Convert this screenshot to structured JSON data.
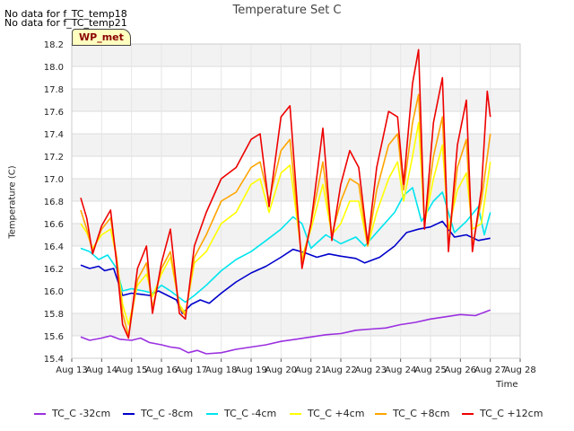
{
  "page": {
    "nodata_messages": [
      "No data for f_TC_temp18",
      "No data for f_TC_temp21"
    ],
    "badge_text": "WP_met"
  },
  "chart_data": {
    "type": "line",
    "title": "Temperature Set C",
    "xlabel": "Time",
    "ylabel": "Temperature (C)",
    "x_ticks": [
      "Aug 13",
      "Aug 14",
      "Aug 15",
      "Aug 16",
      "Aug 17",
      "Aug 18",
      "Aug 19",
      "Aug 20",
      "Aug 21",
      "Aug 22",
      "Aug 23",
      "Aug 24",
      "Aug 25",
      "Aug 26",
      "Aug 27",
      "Aug 28"
    ],
    "y_ticks": [
      "15.4",
      "15.6",
      "15.8",
      "16.0",
      "16.2",
      "16.4",
      "16.6",
      "16.8",
      "17.0",
      "17.2",
      "17.4",
      "17.6",
      "17.8",
      "18.0",
      "18.2"
    ],
    "xlim": [
      13,
      28
    ],
    "ylim": [
      15.4,
      18.2
    ],
    "x_unit": "day of August",
    "grid": true,
    "legend_position": "bottom",
    "series": [
      {
        "name": "TC_C -32cm",
        "color": "#9b30e0",
        "points": [
          [
            13.3,
            15.59
          ],
          [
            13.6,
            15.56
          ],
          [
            14.0,
            15.58
          ],
          [
            14.3,
            15.6
          ],
          [
            14.6,
            15.57
          ],
          [
            15.0,
            15.56
          ],
          [
            15.3,
            15.58
          ],
          [
            15.6,
            15.54
          ],
          [
            16.0,
            15.52
          ],
          [
            16.3,
            15.5
          ],
          [
            16.6,
            15.49
          ],
          [
            16.9,
            15.45
          ],
          [
            17.2,
            15.47
          ],
          [
            17.5,
            15.44
          ],
          [
            18.0,
            15.45
          ],
          [
            18.5,
            15.48
          ],
          [
            19.0,
            15.5
          ],
          [
            19.5,
            15.52
          ],
          [
            20.0,
            15.55
          ],
          [
            20.5,
            15.57
          ],
          [
            21.0,
            15.59
          ],
          [
            21.5,
            15.61
          ],
          [
            22.0,
            15.62
          ],
          [
            22.5,
            15.65
          ],
          [
            23.0,
            15.66
          ],
          [
            23.5,
            15.67
          ],
          [
            24.0,
            15.7
          ],
          [
            24.5,
            15.72
          ],
          [
            25.0,
            15.75
          ],
          [
            25.5,
            15.77
          ],
          [
            26.0,
            15.79
          ],
          [
            26.5,
            15.78
          ],
          [
            27.0,
            15.83
          ]
        ]
      },
      {
        "name": "TC_C -8cm",
        "color": "#0000cc",
        "points": [
          [
            13.3,
            16.23
          ],
          [
            13.6,
            16.2
          ],
          [
            13.9,
            16.22
          ],
          [
            14.1,
            16.18
          ],
          [
            14.4,
            16.2
          ],
          [
            14.7,
            15.96
          ],
          [
            15.0,
            15.98
          ],
          [
            15.3,
            15.97
          ],
          [
            15.6,
            15.96
          ],
          [
            15.9,
            16.0
          ],
          [
            16.2,
            15.96
          ],
          [
            16.5,
            15.92
          ],
          [
            16.7,
            15.8
          ],
          [
            17.0,
            15.88
          ],
          [
            17.3,
            15.92
          ],
          [
            17.6,
            15.89
          ],
          [
            18.0,
            15.98
          ],
          [
            18.5,
            16.08
          ],
          [
            19.0,
            16.16
          ],
          [
            19.5,
            16.22
          ],
          [
            20.0,
            16.3
          ],
          [
            20.4,
            16.37
          ],
          [
            20.8,
            16.34
          ],
          [
            21.2,
            16.3
          ],
          [
            21.6,
            16.33
          ],
          [
            22.0,
            16.31
          ],
          [
            22.5,
            16.29
          ],
          [
            22.8,
            16.25
          ],
          [
            23.3,
            16.3
          ],
          [
            23.8,
            16.4
          ],
          [
            24.2,
            16.52
          ],
          [
            24.6,
            16.55
          ],
          [
            25.0,
            16.57
          ],
          [
            25.4,
            16.62
          ],
          [
            25.8,
            16.48
          ],
          [
            26.2,
            16.5
          ],
          [
            26.6,
            16.45
          ],
          [
            27.0,
            16.47
          ]
        ]
      },
      {
        "name": "TC_C -4cm",
        "color": "#00e5ee",
        "points": [
          [
            13.3,
            16.38
          ],
          [
            13.6,
            16.35
          ],
          [
            13.9,
            16.28
          ],
          [
            14.2,
            16.32
          ],
          [
            14.5,
            16.2
          ],
          [
            14.7,
            16.0
          ],
          [
            15.0,
            16.02
          ],
          [
            15.4,
            16.0
          ],
          [
            15.7,
            15.98
          ],
          [
            16.0,
            16.05
          ],
          [
            16.3,
            16.0
          ],
          [
            16.6,
            15.94
          ],
          [
            16.8,
            15.9
          ],
          [
            17.1,
            15.96
          ],
          [
            17.5,
            16.05
          ],
          [
            18.0,
            16.18
          ],
          [
            18.5,
            16.28
          ],
          [
            19.0,
            16.35
          ],
          [
            19.5,
            16.45
          ],
          [
            20.0,
            16.55
          ],
          [
            20.4,
            16.66
          ],
          [
            20.7,
            16.6
          ],
          [
            21.0,
            16.38
          ],
          [
            21.5,
            16.5
          ],
          [
            22.0,
            16.42
          ],
          [
            22.5,
            16.48
          ],
          [
            22.8,
            16.4
          ],
          [
            23.3,
            16.55
          ],
          [
            23.8,
            16.7
          ],
          [
            24.1,
            16.85
          ],
          [
            24.4,
            16.92
          ],
          [
            24.7,
            16.62
          ],
          [
            25.1,
            16.8
          ],
          [
            25.4,
            16.88
          ],
          [
            25.8,
            16.52
          ],
          [
            26.2,
            16.62
          ],
          [
            26.6,
            16.75
          ],
          [
            26.8,
            16.5
          ],
          [
            27.0,
            16.7
          ]
        ]
      },
      {
        "name": "TC_C +4cm",
        "color": "#ffff00",
        "points": [
          [
            13.3,
            16.6
          ],
          [
            13.5,
            16.52
          ],
          [
            13.7,
            16.38
          ],
          [
            14.0,
            16.5
          ],
          [
            14.3,
            16.55
          ],
          [
            14.5,
            16.3
          ],
          [
            14.7,
            15.88
          ],
          [
            14.9,
            15.7
          ],
          [
            15.2,
            16.05
          ],
          [
            15.5,
            16.15
          ],
          [
            15.7,
            15.95
          ],
          [
            16.0,
            16.15
          ],
          [
            16.3,
            16.3
          ],
          [
            16.6,
            15.88
          ],
          [
            16.8,
            15.8
          ],
          [
            17.1,
            16.25
          ],
          [
            17.5,
            16.35
          ],
          [
            18.0,
            16.6
          ],
          [
            18.5,
            16.7
          ],
          [
            19.0,
            16.95
          ],
          [
            19.3,
            17.0
          ],
          [
            19.6,
            16.7
          ],
          [
            20.0,
            17.05
          ],
          [
            20.3,
            17.12
          ],
          [
            20.7,
            16.3
          ],
          [
            21.0,
            16.55
          ],
          [
            21.4,
            16.95
          ],
          [
            21.7,
            16.5
          ],
          [
            22.0,
            16.6
          ],
          [
            22.3,
            16.8
          ],
          [
            22.6,
            16.8
          ],
          [
            22.9,
            16.4
          ],
          [
            23.2,
            16.7
          ],
          [
            23.6,
            17.0
          ],
          [
            23.9,
            17.15
          ],
          [
            24.1,
            16.8
          ],
          [
            24.4,
            17.2
          ],
          [
            24.6,
            17.5
          ],
          [
            24.8,
            16.6
          ],
          [
            25.1,
            17.0
          ],
          [
            25.4,
            17.3
          ],
          [
            25.6,
            16.55
          ],
          [
            25.9,
            16.9
          ],
          [
            26.2,
            17.05
          ],
          [
            26.4,
            16.55
          ],
          [
            26.7,
            16.6
          ],
          [
            27.0,
            17.15
          ]
        ]
      },
      {
        "name": "TC_C +8cm",
        "color": "#ffa500",
        "points": [
          [
            13.3,
            16.72
          ],
          [
            13.5,
            16.55
          ],
          [
            13.7,
            16.35
          ],
          [
            14.0,
            16.55
          ],
          [
            14.3,
            16.65
          ],
          [
            14.5,
            16.3
          ],
          [
            14.7,
            15.8
          ],
          [
            14.9,
            15.6
          ],
          [
            15.2,
            16.1
          ],
          [
            15.5,
            16.25
          ],
          [
            15.7,
            15.85
          ],
          [
            16.0,
            16.2
          ],
          [
            16.3,
            16.35
          ],
          [
            16.6,
            15.85
          ],
          [
            16.8,
            15.78
          ],
          [
            17.1,
            16.3
          ],
          [
            17.5,
            16.5
          ],
          [
            18.0,
            16.8
          ],
          [
            18.5,
            16.88
          ],
          [
            19.0,
            17.1
          ],
          [
            19.3,
            17.15
          ],
          [
            19.6,
            16.8
          ],
          [
            20.0,
            17.25
          ],
          [
            20.3,
            17.35
          ],
          [
            20.7,
            16.25
          ],
          [
            21.0,
            16.6
          ],
          [
            21.4,
            17.15
          ],
          [
            21.7,
            16.5
          ],
          [
            22.0,
            16.8
          ],
          [
            22.3,
            17.0
          ],
          [
            22.6,
            16.95
          ],
          [
            22.9,
            16.4
          ],
          [
            23.2,
            16.9
          ],
          [
            23.6,
            17.3
          ],
          [
            23.9,
            17.4
          ],
          [
            24.1,
            16.9
          ],
          [
            24.4,
            17.5
          ],
          [
            24.6,
            17.75
          ],
          [
            24.8,
            16.6
          ],
          [
            25.1,
            17.2
          ],
          [
            25.4,
            17.55
          ],
          [
            25.6,
            16.4
          ],
          [
            25.9,
            17.1
          ],
          [
            26.2,
            17.35
          ],
          [
            26.4,
            16.4
          ],
          [
            26.7,
            16.8
          ],
          [
            27.0,
            17.4
          ]
        ]
      },
      {
        "name": "TC_C +12cm",
        "color": "#ee0000",
        "points": [
          [
            13.3,
            16.83
          ],
          [
            13.5,
            16.65
          ],
          [
            13.7,
            16.33
          ],
          [
            14.0,
            16.58
          ],
          [
            14.3,
            16.72
          ],
          [
            14.5,
            16.25
          ],
          [
            14.7,
            15.7
          ],
          [
            14.9,
            15.58
          ],
          [
            15.2,
            16.2
          ],
          [
            15.5,
            16.4
          ],
          [
            15.7,
            15.8
          ],
          [
            16.0,
            16.25
          ],
          [
            16.3,
            16.55
          ],
          [
            16.6,
            15.8
          ],
          [
            16.8,
            15.75
          ],
          [
            17.1,
            16.4
          ],
          [
            17.5,
            16.7
          ],
          [
            18.0,
            17.0
          ],
          [
            18.5,
            17.1
          ],
          [
            19.0,
            17.35
          ],
          [
            19.3,
            17.4
          ],
          [
            19.6,
            16.75
          ],
          [
            20.0,
            17.55
          ],
          [
            20.3,
            17.65
          ],
          [
            20.7,
            16.2
          ],
          [
            21.0,
            16.6
          ],
          [
            21.4,
            17.45
          ],
          [
            21.7,
            16.45
          ],
          [
            22.0,
            16.95
          ],
          [
            22.3,
            17.25
          ],
          [
            22.6,
            17.1
          ],
          [
            22.9,
            16.42
          ],
          [
            23.2,
            17.1
          ],
          [
            23.6,
            17.6
          ],
          [
            23.9,
            17.55
          ],
          [
            24.1,
            16.95
          ],
          [
            24.4,
            17.85
          ],
          [
            24.6,
            18.15
          ],
          [
            24.8,
            16.55
          ],
          [
            25.1,
            17.5
          ],
          [
            25.4,
            17.9
          ],
          [
            25.6,
            16.35
          ],
          [
            25.9,
            17.3
          ],
          [
            26.2,
            17.7
          ],
          [
            26.4,
            16.35
          ],
          [
            26.7,
            16.9
          ],
          [
            26.9,
            17.78
          ],
          [
            27.0,
            17.55
          ]
        ]
      }
    ]
  }
}
